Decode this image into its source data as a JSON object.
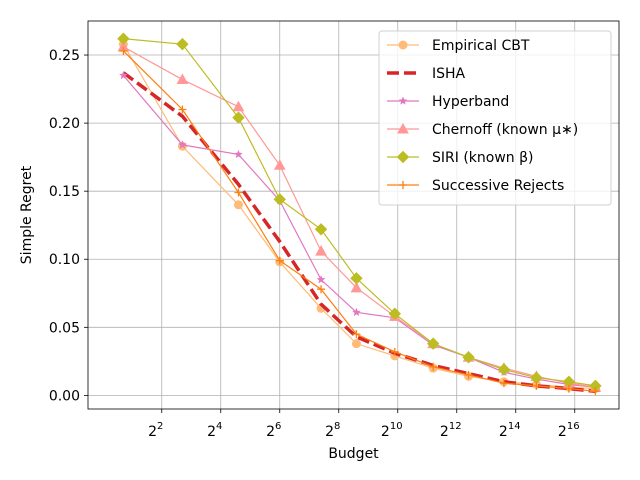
{
  "chart_data": {
    "type": "line",
    "xlabel": "Budget",
    "ylabel": "Simple Regret",
    "x_scale": "log2",
    "xlim_log2": [
      -0.5,
      17.5
    ],
    "ylim": [
      -0.01,
      0.275
    ],
    "grid": true,
    "legend_position": "top-right",
    "x_ticks": [
      {
        "base": "2",
        "exp": "2",
        "log2": 2
      },
      {
        "base": "2",
        "exp": "4",
        "log2": 4
      },
      {
        "base": "2",
        "exp": "6",
        "log2": 6
      },
      {
        "base": "2",
        "exp": "8",
        "log2": 8
      },
      {
        "base": "2",
        "exp": "10",
        "log2": 10
      },
      {
        "base": "2",
        "exp": "12",
        "log2": 12
      },
      {
        "base": "2",
        "exp": "14",
        "log2": 14
      },
      {
        "base": "2",
        "exp": "16",
        "log2": 16
      }
    ],
    "y_ticks": [
      "0.00",
      "0.05",
      "0.10",
      "0.15",
      "0.20",
      "0.25"
    ],
    "y_tick_values": [
      0,
      0.05,
      0.1,
      0.15,
      0.2,
      0.25
    ],
    "series": [
      {
        "name": "Empirical CBT",
        "color": "#ffbb78",
        "marker": "circle",
        "dash": "solid",
        "x_log2": [
          0.7,
          2.7,
          4.6,
          6.0,
          7.4,
          8.6,
          9.9,
          11.2,
          12.4,
          13.6,
          14.7,
          15.8,
          16.7
        ],
        "values": [
          0.258,
          0.183,
          0.14,
          0.098,
          0.064,
          0.038,
          0.029,
          0.02,
          0.014,
          0.01,
          0.008,
          0.006,
          0.005
        ]
      },
      {
        "name": "ISHA",
        "color": "#d62728",
        "marker": "none",
        "dash": "dashed",
        "x_log2": [
          0.7,
          2.7,
          4.6,
          6.0,
          7.4,
          8.6,
          9.9,
          11.2,
          12.4,
          13.6,
          14.7,
          15.8,
          16.7
        ],
        "values": [
          0.237,
          0.205,
          0.155,
          0.113,
          0.067,
          0.043,
          0.031,
          0.022,
          0.016,
          0.01,
          0.007,
          0.005,
          0.003
        ]
      },
      {
        "name": "Hyperband",
        "color": "#e377c2",
        "marker": "star",
        "dash": "solid",
        "x_log2": [
          0.7,
          2.7,
          4.6,
          6.0,
          7.4,
          8.6,
          9.9,
          11.2,
          12.4,
          13.6,
          14.7,
          15.8,
          16.7
        ],
        "values": [
          0.235,
          0.184,
          0.177,
          0.143,
          0.085,
          0.061,
          0.057,
          0.037,
          0.028,
          0.017,
          0.012,
          0.008,
          0.006
        ]
      },
      {
        "name": "Chernoff (known μ∗)",
        "color": "#ff9896",
        "marker": "triangle",
        "dash": "solid",
        "x_log2": [
          0.7,
          2.7,
          4.6,
          6.0,
          7.4,
          8.6,
          9.9,
          11.2,
          12.4,
          13.6,
          14.7,
          15.8,
          16.7
        ],
        "values": [
          0.256,
          0.232,
          0.212,
          0.169,
          0.106,
          0.079,
          0.058,
          0.038,
          0.028,
          0.02,
          0.014,
          0.009,
          0.006
        ]
      },
      {
        "name": "SIRI (known β)",
        "color": "#bcbd22",
        "marker": "diamond",
        "dash": "solid",
        "x_log2": [
          0.7,
          2.7,
          4.6,
          6.0,
          7.4,
          8.6,
          9.9,
          11.2,
          12.4,
          13.6,
          14.7,
          15.8,
          16.7
        ],
        "values": [
          0.262,
          0.258,
          0.204,
          0.144,
          0.122,
          0.086,
          0.06,
          0.038,
          0.028,
          0.019,
          0.013,
          0.01,
          0.007
        ]
      },
      {
        "name": "Successive Rejects",
        "color": "#ff7f0e",
        "marker": "plus",
        "dash": "solid",
        "x_log2": [
          0.7,
          2.7,
          4.6,
          6.0,
          7.4,
          8.6,
          9.9,
          11.2,
          12.4,
          13.6,
          14.7,
          15.8,
          16.7
        ],
        "values": [
          0.253,
          0.21,
          0.149,
          0.099,
          0.078,
          0.045,
          0.032,
          0.021,
          0.015,
          0.009,
          0.007,
          0.005,
          0.003
        ]
      }
    ]
  }
}
